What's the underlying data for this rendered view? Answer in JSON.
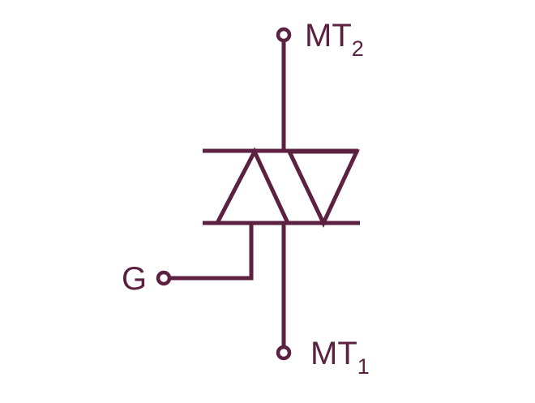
{
  "diagram": {
    "symbol": "TRIAC",
    "colors": {
      "stroke": "#5c2140",
      "fill": "#fdf0a8",
      "background": "#ffffff"
    },
    "terminals": {
      "mt2": {
        "main": "MT",
        "sub": "2"
      },
      "mt1": {
        "main": "MT",
        "sub": "1"
      },
      "gate": {
        "main": "G"
      }
    }
  }
}
